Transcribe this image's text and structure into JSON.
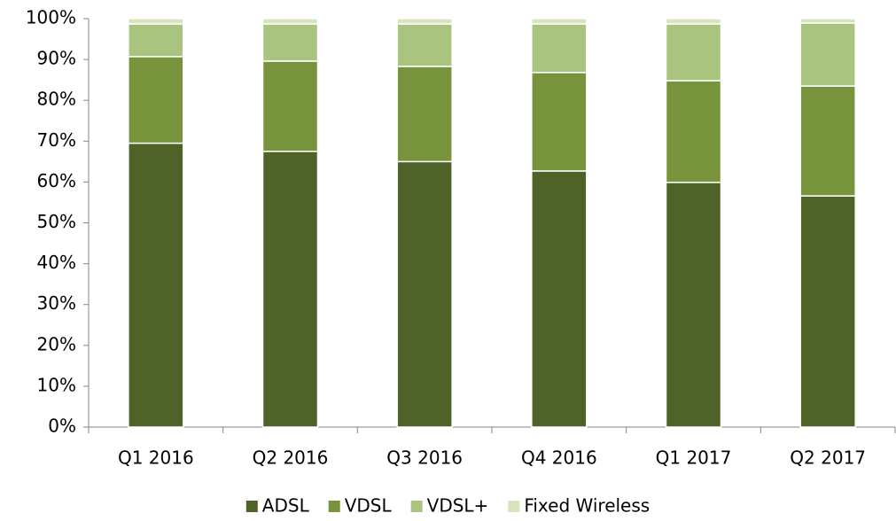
{
  "chart_data": {
    "type": "stacked_bar",
    "categories": [
      "Q1 2016",
      "Q2 2016",
      "Q3 2016",
      "Q4 2016",
      "Q1 2017",
      "Q2 2017"
    ],
    "series": [
      {
        "name": "ADSL",
        "color": "#4f6228",
        "values": [
          69.5,
          67.5,
          65.0,
          62.7,
          59.9,
          56.6
        ]
      },
      {
        "name": "VDSL",
        "color": "#77933c",
        "values": [
          21.2,
          22.1,
          23.3,
          24.1,
          24.9,
          26.9
        ]
      },
      {
        "name": "VDSL+",
        "color": "#a9c47f",
        "values": [
          8.0,
          9.1,
          10.4,
          11.9,
          13.9,
          15.4
        ]
      },
      {
        "name": "Fixed Wireless",
        "color": "#d7e4bd",
        "values": [
          1.3,
          1.3,
          1.3,
          1.3,
          1.3,
          1.1
        ]
      }
    ],
    "ylim": [
      0,
      100
    ],
    "yticks": [
      {
        "value": 0,
        "label": "0%"
      },
      {
        "value": 10,
        "label": "10%"
      },
      {
        "value": 20,
        "label": "20%"
      },
      {
        "value": 30,
        "label": "30%"
      },
      {
        "value": 40,
        "label": "40%"
      },
      {
        "value": 50,
        "label": "50%"
      },
      {
        "value": 60,
        "label": "60%"
      },
      {
        "value": 70,
        "label": "70%"
      },
      {
        "value": 80,
        "label": "80%"
      },
      {
        "value": 90,
        "label": "90%"
      },
      {
        "value": 100,
        "label": "100%"
      }
    ],
    "legend": "bottom"
  }
}
